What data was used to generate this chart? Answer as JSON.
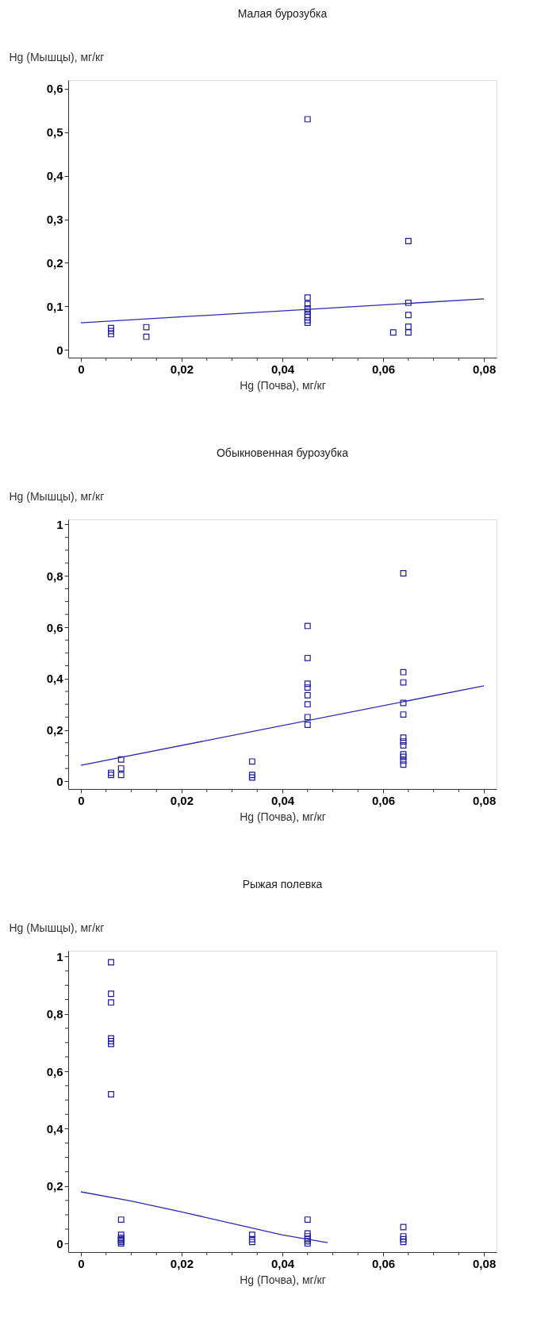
{
  "chart_data": [
    {
      "type": "scatter",
      "title": "Малая бурозубка",
      "xlabel": "Hg (Почва), мг/кг",
      "ylabel": "Hg (Мышцы), мг/кг",
      "xlim": [
        -0.0025,
        0.0825
      ],
      "ylim": [
        -0.018,
        0.62
      ],
      "xticks": [
        {
          "value": 0,
          "label": "0"
        },
        {
          "value": 0.005,
          "label": null
        },
        {
          "value": 0.01,
          "label": null
        },
        {
          "value": 0.015,
          "label": null
        },
        {
          "value": 0.02,
          "label": "0,02"
        },
        {
          "value": 0.025,
          "label": null
        },
        {
          "value": 0.03,
          "label": null
        },
        {
          "value": 0.035,
          "label": null
        },
        {
          "value": 0.04,
          "label": "0,04"
        },
        {
          "value": 0.045,
          "label": null
        },
        {
          "value": 0.05,
          "label": null
        },
        {
          "value": 0.055,
          "label": null
        },
        {
          "value": 0.06,
          "label": "0,06"
        },
        {
          "value": 0.065,
          "label": null
        },
        {
          "value": 0.07,
          "label": null
        },
        {
          "value": 0.075,
          "label": null
        },
        {
          "value": 0.08,
          "label": "0,08"
        }
      ],
      "yticks": [
        {
          "value": 0,
          "label": "0"
        },
        {
          "value": 0.1,
          "label": "0,1"
        },
        {
          "value": 0.2,
          "label": "0,2"
        },
        {
          "value": 0.3,
          "label": "0,3"
        },
        {
          "value": 0.4,
          "label": "0,4"
        },
        {
          "value": 0.5,
          "label": "0,5"
        },
        {
          "value": 0.6,
          "label": "0,6"
        }
      ],
      "series": [
        {
          "marker": "square",
          "color": "#1c1c9c",
          "x": [
            0.006,
            0.006,
            0.006,
            0.013,
            0.013,
            0.045,
            0.045,
            0.045,
            0.045,
            0.045,
            0.045,
            0.045,
            0.045,
            0.045,
            0.062,
            0.065,
            0.065,
            0.065,
            0.065,
            0.065
          ],
          "values": [
            0.05,
            0.043,
            0.036,
            0.052,
            0.03,
            0.53,
            0.12,
            0.105,
            0.095,
            0.088,
            0.08,
            0.075,
            0.068,
            0.062,
            0.04,
            0.25,
            0.108,
            0.08,
            0.053,
            0.04
          ]
        },
        {
          "type": "line",
          "line_style": "solid",
          "color": "#2a2ab0",
          "x": [
            0,
            0.08
          ],
          "values": [
            0.062,
            0.117
          ]
        }
      ]
    },
    {
      "type": "scatter",
      "title": "Обыкновенная бурозубка",
      "xlabel": "Hg (Почва), мг/кг",
      "ylabel": "Hg (Мышцы), мг/кг",
      "xlim": [
        -0.0025,
        0.0825
      ],
      "ylim": [
        -0.03,
        1.02
      ],
      "xticks": [
        {
          "value": 0,
          "label": "0"
        },
        {
          "value": 0.005,
          "label": null
        },
        {
          "value": 0.01,
          "label": null
        },
        {
          "value": 0.015,
          "label": null
        },
        {
          "value": 0.02,
          "label": "0,02"
        },
        {
          "value": 0.025,
          "label": null
        },
        {
          "value": 0.03,
          "label": null
        },
        {
          "value": 0.035,
          "label": null
        },
        {
          "value": 0.04,
          "label": "0,04"
        },
        {
          "value": 0.045,
          "label": null
        },
        {
          "value": 0.05,
          "label": null
        },
        {
          "value": 0.055,
          "label": null
        },
        {
          "value": 0.06,
          "label": "0,06"
        },
        {
          "value": 0.065,
          "label": null
        },
        {
          "value": 0.07,
          "label": null
        },
        {
          "value": 0.075,
          "label": null
        },
        {
          "value": 0.08,
          "label": "0,08"
        }
      ],
      "yticks": [
        {
          "value": 0,
          "label": "0"
        },
        {
          "value": 0.05,
          "label": null
        },
        {
          "value": 0.1,
          "label": null
        },
        {
          "value": 0.15,
          "label": null
        },
        {
          "value": 0.2,
          "label": "0,2"
        },
        {
          "value": 0.25,
          "label": null
        },
        {
          "value": 0.3,
          "label": null
        },
        {
          "value": 0.35,
          "label": null
        },
        {
          "value": 0.4,
          "label": "0,4"
        },
        {
          "value": 0.45,
          "label": null
        },
        {
          "value": 0.5,
          "label": null
        },
        {
          "value": 0.55,
          "label": null
        },
        {
          "value": 0.6,
          "label": "0,6"
        },
        {
          "value": 0.65,
          "label": null
        },
        {
          "value": 0.7,
          "label": null
        },
        {
          "value": 0.75,
          "label": null
        },
        {
          "value": 0.8,
          "label": "0,8"
        },
        {
          "value": 0.85,
          "label": null
        },
        {
          "value": 0.9,
          "label": null
        },
        {
          "value": 0.95,
          "label": null
        },
        {
          "value": 1,
          "label": "1"
        }
      ],
      "series": [
        {
          "marker": "square",
          "color": "#1c1c9c",
          "x": [
            0.006,
            0.006,
            0.008,
            0.008,
            0.008,
            0.034,
            0.034,
            0.034,
            0.045,
            0.045,
            0.045,
            0.045,
            0.045,
            0.045,
            0.045,
            0.045,
            0.064,
            0.064,
            0.064,
            0.064,
            0.064,
            0.064,
            0.064,
            0.064,
            0.064,
            0.064,
            0.064,
            0.064
          ],
          "values": [
            0.033,
            0.025,
            0.085,
            0.05,
            0.025,
            0.077,
            0.025,
            0.015,
            0.605,
            0.48,
            0.38,
            0.365,
            0.335,
            0.3,
            0.25,
            0.22,
            0.81,
            0.425,
            0.385,
            0.305,
            0.26,
            0.17,
            0.155,
            0.14,
            0.105,
            0.095,
            0.08,
            0.065
          ]
        },
        {
          "type": "line",
          "line_style": "solid",
          "color": "#2a2ab0",
          "x": [
            0,
            0.08
          ],
          "values": [
            0.062,
            0.372
          ]
        }
      ]
    },
    {
      "type": "scatter",
      "title": "Рыжая полевка",
      "xlabel": "Hg (Почва), мг/кг",
      "ylabel": "Hg (Мышцы), мг/кг",
      "xlim": [
        -0.0025,
        0.0825
      ],
      "ylim": [
        -0.03,
        1.02
      ],
      "xticks": [
        {
          "value": 0,
          "label": "0"
        },
        {
          "value": 0.005,
          "label": null
        },
        {
          "value": 0.01,
          "label": null
        },
        {
          "value": 0.015,
          "label": null
        },
        {
          "value": 0.02,
          "label": "0,02"
        },
        {
          "value": 0.025,
          "label": null
        },
        {
          "value": 0.03,
          "label": null
        },
        {
          "value": 0.035,
          "label": null
        },
        {
          "value": 0.04,
          "label": "0,04"
        },
        {
          "value": 0.045,
          "label": null
        },
        {
          "value": 0.05,
          "label": null
        },
        {
          "value": 0.055,
          "label": null
        },
        {
          "value": 0.06,
          "label": "0,06"
        },
        {
          "value": 0.065,
          "label": null
        },
        {
          "value": 0.07,
          "label": null
        },
        {
          "value": 0.075,
          "label": null
        },
        {
          "value": 0.08,
          "label": "0,08"
        }
      ],
      "yticks": [
        {
          "value": 0,
          "label": "0"
        },
        {
          "value": 0.05,
          "label": null
        },
        {
          "value": 0.1,
          "label": null
        },
        {
          "value": 0.15,
          "label": null
        },
        {
          "value": 0.2,
          "label": "0,2"
        },
        {
          "value": 0.25,
          "label": null
        },
        {
          "value": 0.3,
          "label": null
        },
        {
          "value": 0.35,
          "label": null
        },
        {
          "value": 0.4,
          "label": "0,4"
        },
        {
          "value": 0.45,
          "label": null
        },
        {
          "value": 0.5,
          "label": null
        },
        {
          "value": 0.55,
          "label": null
        },
        {
          "value": 0.6,
          "label": "0,6"
        },
        {
          "value": 0.65,
          "label": null
        },
        {
          "value": 0.7,
          "label": null
        },
        {
          "value": 0.75,
          "label": null
        },
        {
          "value": 0.8,
          "label": "0,8"
        },
        {
          "value": 0.85,
          "label": null
        },
        {
          "value": 0.9,
          "label": null
        },
        {
          "value": 0.95,
          "label": null
        },
        {
          "value": 1,
          "label": "1"
        }
      ],
      "series": [
        {
          "marker": "square",
          "color": "#1c1c9c",
          "x": [
            0.006,
            0.006,
            0.006,
            0.006,
            0.006,
            0.006,
            0.006,
            0.008,
            0.008,
            0.008,
            0.008,
            0.008,
            0.008,
            0.008,
            0.034,
            0.034,
            0.034,
            0.045,
            0.045,
            0.045,
            0.045,
            0.045,
            0.045,
            0.064,
            0.064,
            0.064,
            0.064
          ],
          "values": [
            0.98,
            0.87,
            0.84,
            0.715,
            0.705,
            0.695,
            0.52,
            0.083,
            0.03,
            0.02,
            0.015,
            0.01,
            0.005,
            0.0,
            0.03,
            0.015,
            0.005,
            0.083,
            0.035,
            0.025,
            0.015,
            0.008,
            0.0,
            0.057,
            0.025,
            0.015,
            0.005
          ]
        },
        {
          "type": "line",
          "line_style": "solid",
          "color": "#2a2ab0",
          "x": [
            0,
            0.01,
            0.02,
            0.03,
            0.04,
            0.049
          ],
          "values": [
            0.18,
            0.148,
            0.11,
            0.07,
            0.03,
            0.003
          ]
        }
      ]
    }
  ]
}
